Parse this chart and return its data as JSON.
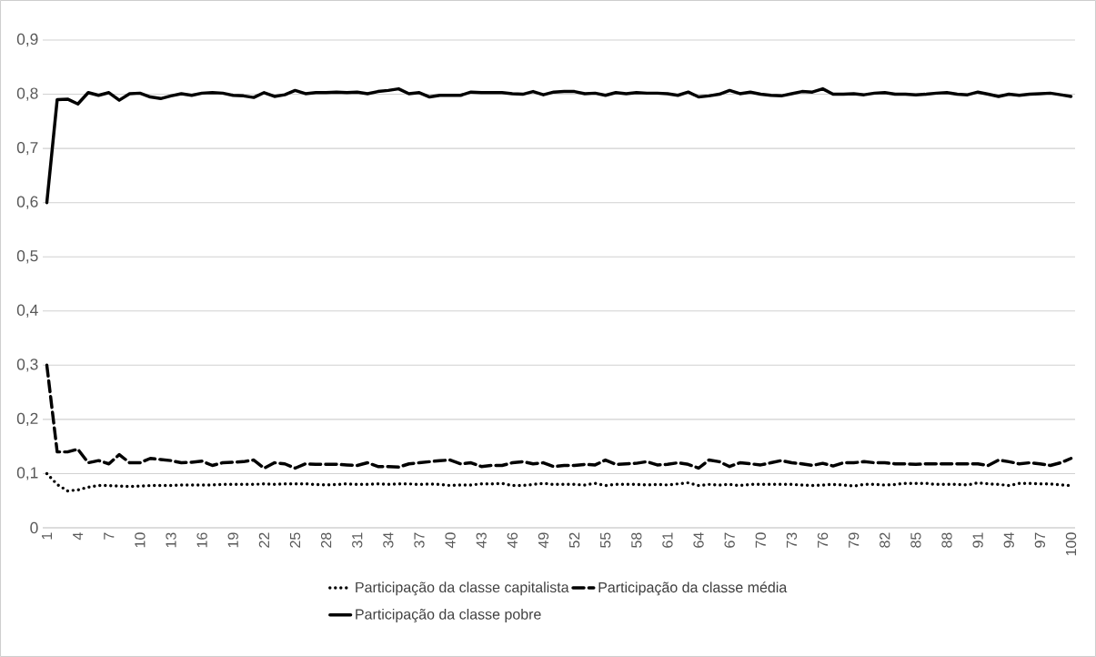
{
  "chart_data": {
    "type": "line",
    "categories": [
      "1",
      null,
      null,
      "4",
      null,
      null,
      "7",
      null,
      null,
      "10",
      null,
      null,
      "13",
      null,
      null,
      "16",
      null,
      null,
      "19",
      null,
      null,
      "22",
      null,
      null,
      "25",
      null,
      null,
      "28",
      null,
      null,
      "31",
      null,
      null,
      "34",
      null,
      null,
      "37",
      null,
      null,
      "40",
      null,
      null,
      "43",
      null,
      null,
      "46",
      null,
      null,
      "49",
      null,
      null,
      "52",
      null,
      null,
      "55",
      null,
      null,
      "58",
      null,
      null,
      "61",
      null,
      null,
      "64",
      null,
      null,
      "67",
      null,
      null,
      "70",
      null,
      null,
      "73",
      null,
      null,
      "76",
      null,
      null,
      "79",
      null,
      null,
      "82",
      null,
      null,
      "85",
      null,
      null,
      "88",
      null,
      null,
      "91",
      null,
      null,
      "94",
      null,
      null,
      "97",
      null,
      null,
      "100"
    ],
    "series": [
      {
        "name": "Participação da classe capitalista",
        "color": "#000000",
        "line_style": "dotted",
        "values": [
          0.1,
          0.08,
          0.068,
          0.07,
          0.075,
          0.078,
          0.078,
          0.077,
          0.076,
          0.077,
          0.078,
          0.078,
          0.078,
          0.079,
          0.079,
          0.079,
          0.079,
          0.08,
          0.08,
          0.08,
          0.08,
          0.081,
          0.08,
          0.081,
          0.081,
          0.081,
          0.08,
          0.079,
          0.08,
          0.081,
          0.08,
          0.08,
          0.081,
          0.08,
          0.081,
          0.081,
          0.08,
          0.081,
          0.08,
          0.078,
          0.079,
          0.079,
          0.081,
          0.081,
          0.082,
          0.078,
          0.078,
          0.08,
          0.082,
          0.08,
          0.08,
          0.08,
          0.079,
          0.082,
          0.078,
          0.08,
          0.08,
          0.08,
          0.079,
          0.08,
          0.079,
          0.081,
          0.083,
          0.078,
          0.08,
          0.079,
          0.08,
          0.078,
          0.08,
          0.08,
          0.08,
          0.08,
          0.08,
          0.079,
          0.078,
          0.079,
          0.08,
          0.079,
          0.077,
          0.08,
          0.08,
          0.079,
          0.08,
          0.082,
          0.082,
          0.082,
          0.08,
          0.08,
          0.08,
          0.079,
          0.083,
          0.081,
          0.08,
          0.078,
          0.082,
          0.082,
          0.081,
          0.081,
          0.079,
          0.078
        ]
      },
      {
        "name": "Participação da classe média",
        "color": "#000000",
        "line_style": "dashed",
        "values": [
          0.3,
          0.14,
          0.14,
          0.145,
          0.12,
          0.124,
          0.118,
          0.135,
          0.12,
          0.12,
          0.128,
          0.126,
          0.124,
          0.12,
          0.121,
          0.123,
          0.115,
          0.12,
          0.121,
          0.122,
          0.125,
          0.11,
          0.12,
          0.118,
          0.11,
          0.118,
          0.117,
          0.117,
          0.117,
          0.116,
          0.115,
          0.12,
          0.113,
          0.113,
          0.112,
          0.118,
          0.12,
          0.122,
          0.124,
          0.125,
          0.118,
          0.12,
          0.113,
          0.115,
          0.115,
          0.12,
          0.122,
          0.118,
          0.12,
          0.113,
          0.115,
          0.115,
          0.117,
          0.116,
          0.125,
          0.117,
          0.118,
          0.119,
          0.122,
          0.116,
          0.117,
          0.12,
          0.117,
          0.11,
          0.125,
          0.122,
          0.113,
          0.12,
          0.118,
          0.116,
          0.12,
          0.124,
          0.12,
          0.118,
          0.115,
          0.119,
          0.114,
          0.12,
          0.12,
          0.122,
          0.12,
          0.12,
          0.118,
          0.118,
          0.117,
          0.118,
          0.118,
          0.118,
          0.118,
          0.118,
          0.118,
          0.115,
          0.125,
          0.122,
          0.118,
          0.12,
          0.118,
          0.115,
          0.12,
          0.128
        ]
      },
      {
        "name": "Participação da classe pobre",
        "color": "#000000",
        "line_style": "solid",
        "values": [
          0.6,
          0.79,
          0.791,
          0.782,
          0.803,
          0.798,
          0.803,
          0.789,
          0.801,
          0.802,
          0.795,
          0.792,
          0.797,
          0.801,
          0.798,
          0.802,
          0.803,
          0.802,
          0.798,
          0.797,
          0.794,
          0.803,
          0.796,
          0.799,
          0.807,
          0.801,
          0.803,
          0.803,
          0.804,
          0.803,
          0.804,
          0.801,
          0.805,
          0.807,
          0.81,
          0.801,
          0.803,
          0.795,
          0.798,
          0.798,
          0.798,
          0.804,
          0.803,
          0.803,
          0.803,
          0.801,
          0.8,
          0.805,
          0.799,
          0.804,
          0.805,
          0.805,
          0.801,
          0.802,
          0.798,
          0.803,
          0.801,
          0.803,
          0.802,
          0.802,
          0.801,
          0.798,
          0.804,
          0.795,
          0.797,
          0.8,
          0.807,
          0.801,
          0.804,
          0.8,
          0.798,
          0.797,
          0.801,
          0.805,
          0.804,
          0.81,
          0.8,
          0.8,
          0.801,
          0.799,
          0.802,
          0.803,
          0.8,
          0.8,
          0.799,
          0.8,
          0.802,
          0.803,
          0.8,
          0.799,
          0.804,
          0.8,
          0.796,
          0.8,
          0.798,
          0.8,
          0.801,
          0.802,
          0.799,
          0.796
        ]
      }
    ],
    "ylim": [
      0,
      0.9
    ],
    "yticks": [
      0,
      {
        "value": 0.1,
        "label": "0,1"
      },
      {
        "value": 0.2,
        "label": "0,2"
      },
      {
        "value": 0.3,
        "label": "0,3"
      },
      {
        "value": 0.4,
        "label": "0,4"
      },
      {
        "value": 0.5,
        "label": "0,5"
      },
      {
        "value": 0.6,
        "label": "0,6"
      },
      {
        "value": 0.7,
        "label": "0,7"
      },
      {
        "value": 0.8,
        "label": "0,8"
      },
      {
        "value": 0.9,
        "label": "0,9"
      }
    ],
    "grid": "y",
    "legend": "bottom",
    "marker": "none"
  }
}
